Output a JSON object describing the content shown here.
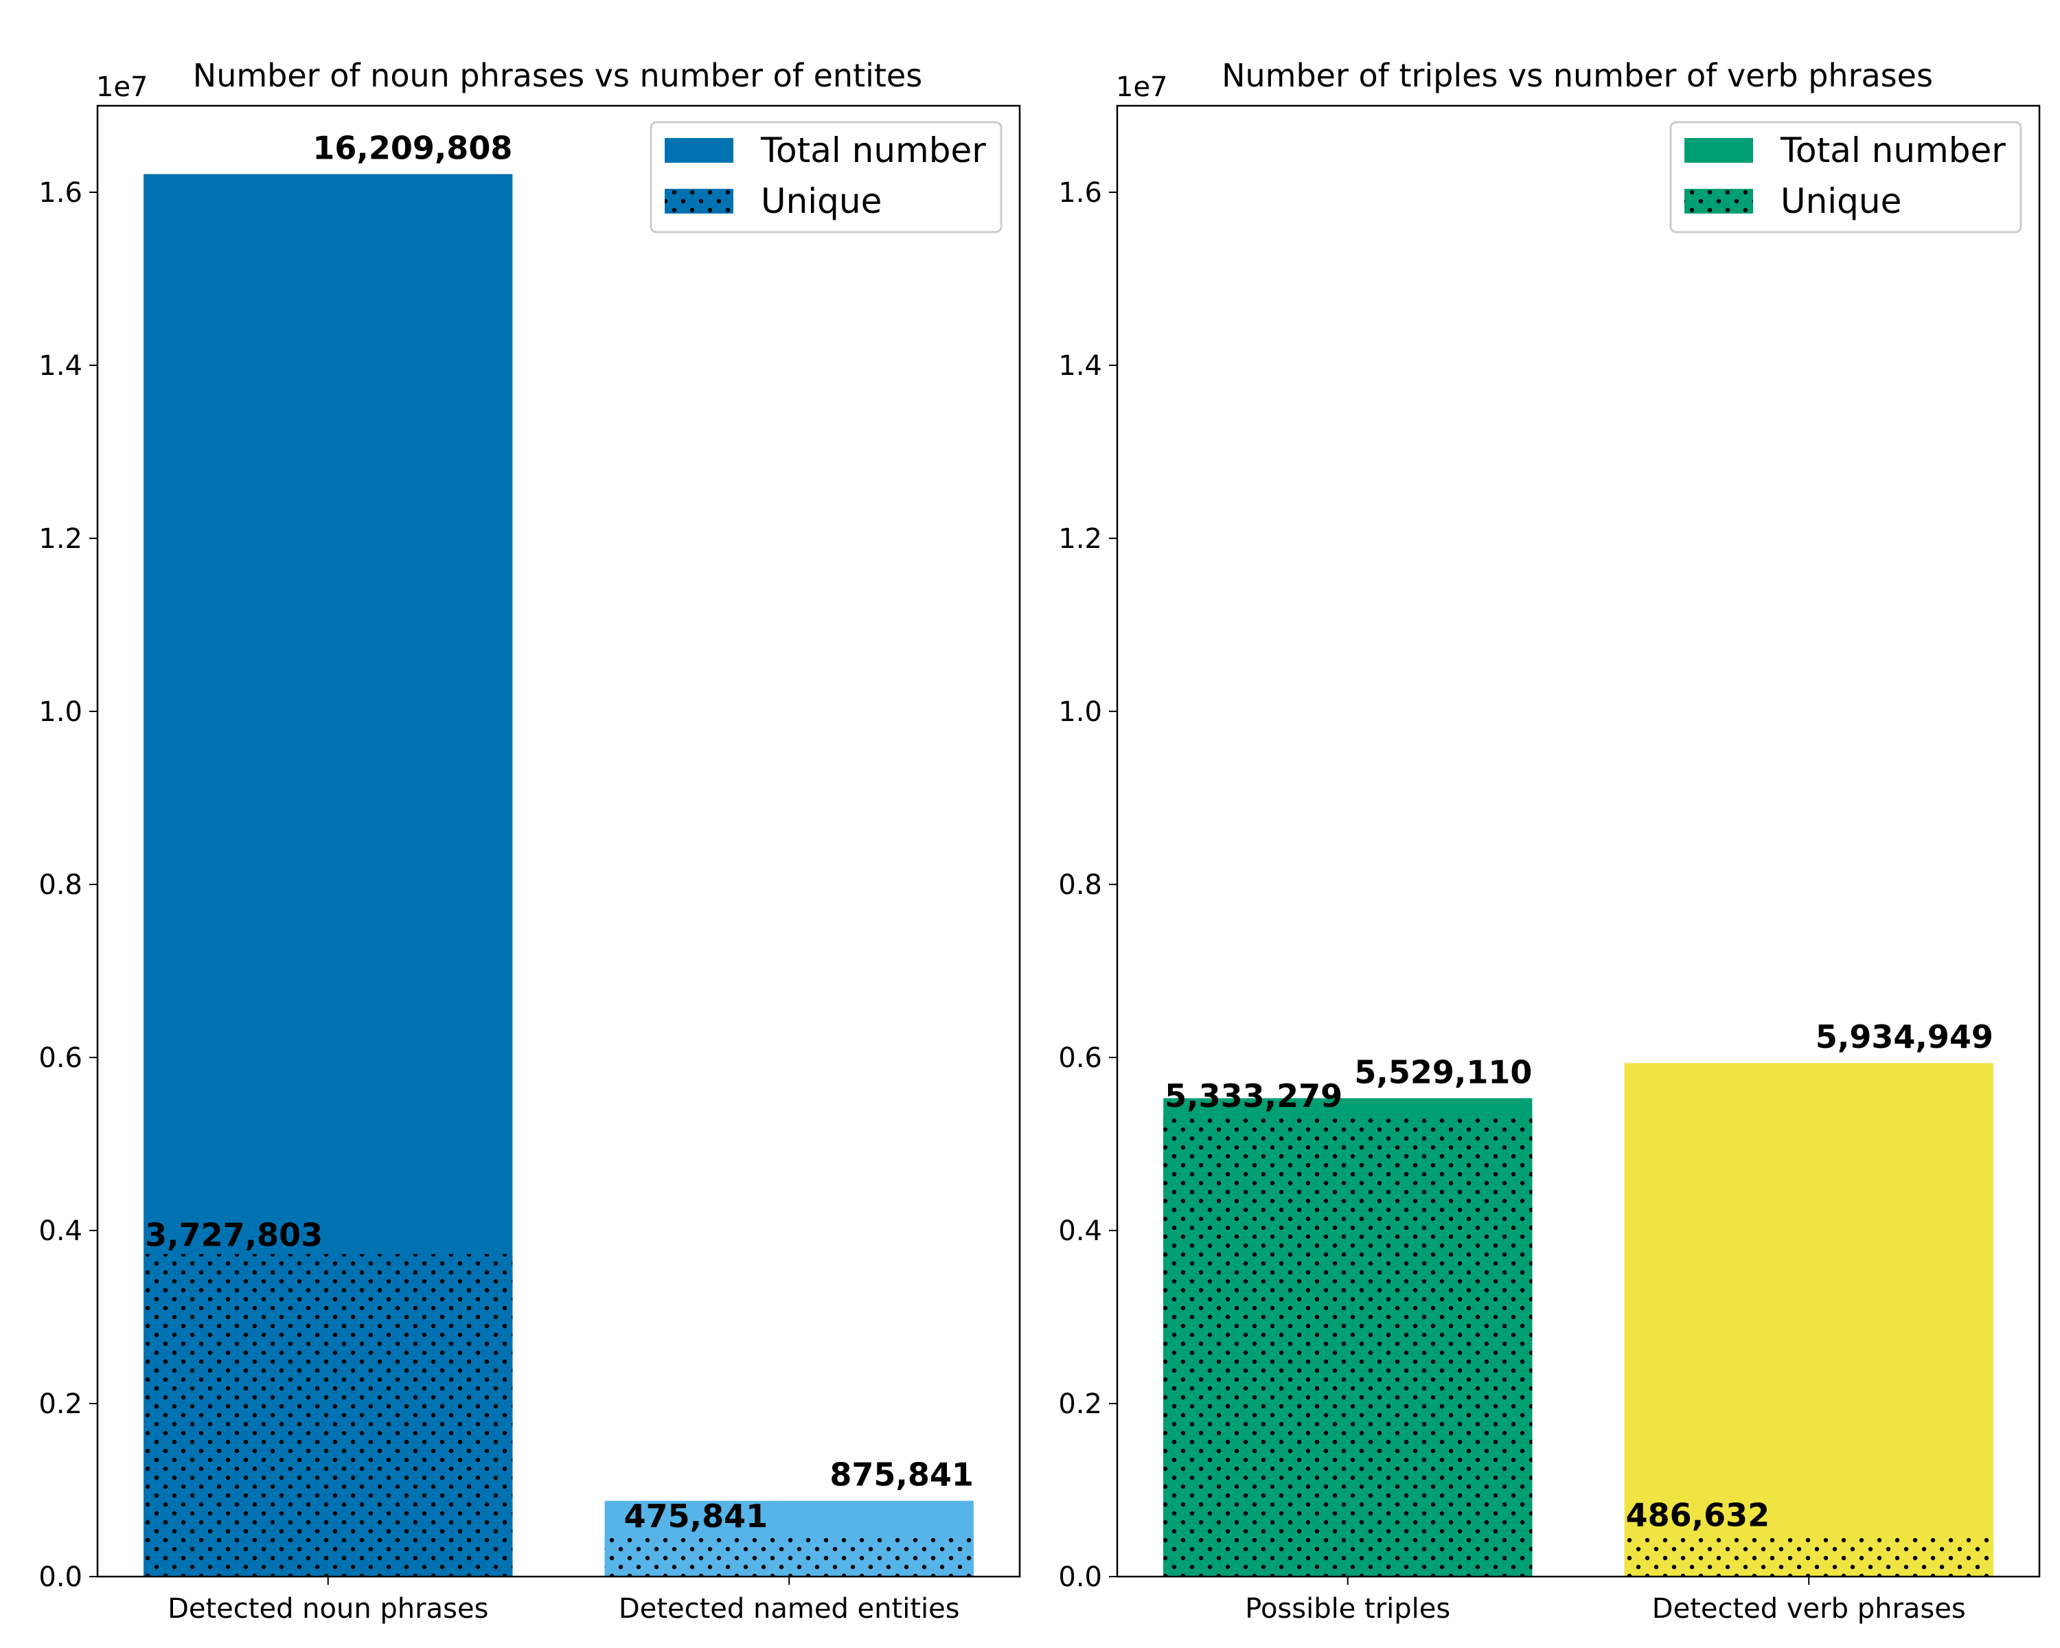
{
  "chart_data": [
    {
      "type": "bar",
      "title": "Number of noun phrases vs number of entites",
      "offset_label": "1e7",
      "categories": [
        "Detected noun phrases",
        "Detected named entities"
      ],
      "series": [
        {
          "name": "Total number",
          "values": [
            16209808,
            875841
          ]
        },
        {
          "name": "Unique",
          "values": [
            3727803,
            475841
          ]
        }
      ],
      "total_labels": [
        "16,209,808",
        "875,841"
      ],
      "unique_labels": [
        "3,727,803",
        "475,841"
      ],
      "bar_colors": [
        "#0072b2",
        "#56b4e9"
      ],
      "legend_color": "#0072b2",
      "hatch": "dots",
      "ylim": [
        0,
        17000000
      ],
      "yticks": [
        0,
        2000000,
        4000000,
        6000000,
        8000000,
        10000000,
        12000000,
        14000000,
        16000000
      ],
      "ytick_labels": [
        "0.0",
        "0.2",
        "0.4",
        "0.6",
        "0.8",
        "1.0",
        "1.2",
        "1.4",
        "1.6"
      ],
      "legend_position": "top-right",
      "grid": false
    },
    {
      "type": "bar",
      "title": "Number of triples vs number of verb phrases",
      "offset_label": "1e7",
      "categories": [
        "Possible triples",
        "Detected verb phrases"
      ],
      "series": [
        {
          "name": "Total number",
          "values": [
            5529110,
            5934949
          ]
        },
        {
          "name": "Unique",
          "values": [
            5333279,
            486632
          ]
        }
      ],
      "total_labels": [
        "5,529,110",
        "5,934,949"
      ],
      "unique_labels": [
        "5,333,279",
        "486,632"
      ],
      "bar_colors": [
        "#009e73",
        "#f0e442"
      ],
      "legend_color": "#009e73",
      "hatch": "dots",
      "ylim": [
        0,
        17000000
      ],
      "yticks": [
        0,
        2000000,
        4000000,
        6000000,
        8000000,
        10000000,
        12000000,
        14000000,
        16000000
      ],
      "ytick_labels": [
        "0.0",
        "0.2",
        "0.4",
        "0.6",
        "0.8",
        "1.0",
        "1.2",
        "1.4",
        "1.6"
      ],
      "legend_position": "top-right",
      "grid": false
    }
  ]
}
